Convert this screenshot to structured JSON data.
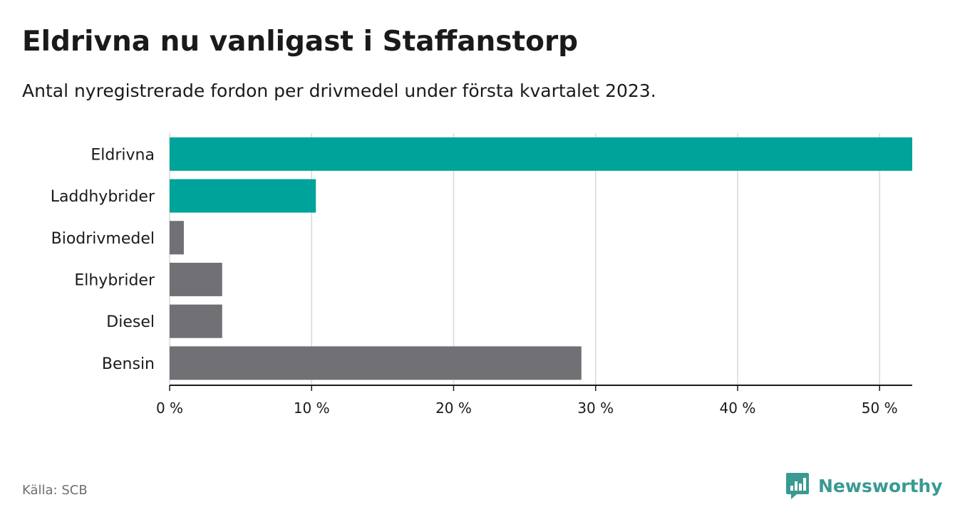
{
  "header": {
    "title": "Eldrivna nu vanligast i Staffanstorp",
    "subtitle": "Antal nyregistrerade fordon per drivmedel under första kvartalet 2023."
  },
  "footer": {
    "source": "Källa: SCB",
    "brand": "Newsworthy",
    "brand_icon": "bar-chart-logo-icon"
  },
  "colors": {
    "highlight": "#00a39a",
    "muted": "#707075",
    "grid": "#d9d9d9",
    "axis": "#1a1a1a",
    "brand": "#3a9a92"
  },
  "chart_data": {
    "type": "bar",
    "orientation": "horizontal",
    "categories": [
      "Eldrivna",
      "Laddhybrider",
      "Biodrivmedel",
      "Elhybrider",
      "Diesel",
      "Bensin"
    ],
    "values": [
      52.3,
      10.3,
      1.0,
      3.7,
      3.7,
      29.0
    ],
    "highlighted": [
      true,
      true,
      false,
      false,
      false,
      false
    ],
    "xlim": [
      0,
      52.3
    ],
    "xticks": [
      0,
      10,
      20,
      30,
      40,
      50
    ],
    "xtick_labels": [
      "0 %",
      "10 %",
      "20 %",
      "30 %",
      "40 %",
      "50 %"
    ],
    "grid": true,
    "legend": "none"
  }
}
